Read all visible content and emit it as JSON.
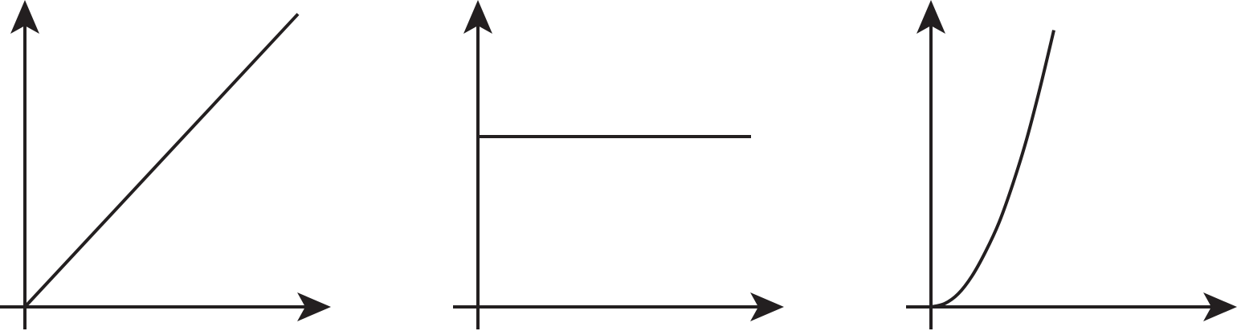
{
  "chart_data": [
    {
      "type": "line",
      "title": "",
      "xlabel": "",
      "ylabel": "",
      "xlim": [
        0,
        10
      ],
      "ylim": [
        0,
        10
      ],
      "grid": false,
      "legend": "none",
      "color": "#231f20",
      "series": [
        {
          "x": [
            0,
            10
          ],
          "y": [
            0,
            9.8
          ]
        }
      ]
    },
    {
      "type": "line",
      "title": "",
      "xlabel": "",
      "ylabel": "",
      "xlim": [
        0,
        10
      ],
      "ylim": [
        0,
        10
      ],
      "grid": false,
      "legend": "none",
      "color": "#231f20",
      "series": [
        {
          "x": [
            0,
            10
          ],
          "y": [
            5.7,
            5.7
          ]
        }
      ]
    },
    {
      "type": "line",
      "title": "",
      "xlabel": "",
      "ylabel": "",
      "xlim": [
        0,
        10
      ],
      "ylim": [
        0,
        10
      ],
      "grid": false,
      "legend": "none",
      "color": "#231f20",
      "series": [
        {
          "x": [
            0,
            0.5,
            1,
            1.5,
            2,
            2.5,
            3,
            3.5,
            4,
            4.5
          ],
          "y": [
            0,
            0.11,
            0.44,
            1.03,
            1.85,
            2.84,
            4.12,
            5.6,
            7.35,
            9.26
          ]
        }
      ]
    }
  ]
}
